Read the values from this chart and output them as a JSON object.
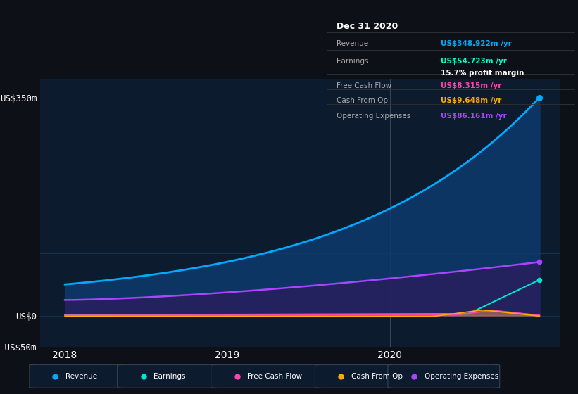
{
  "bg_color": "#0d1117",
  "plot_bg_color": "#0d1b2e",
  "grid_color": "#1e3050",
  "title_box_bg": "#0a0a0a",
  "title_box_border": "#333333",
  "info_box": {
    "date": "Dec 31 2020",
    "revenue_label": "Revenue",
    "revenue_value": "US$348.922m /yr",
    "revenue_color": "#00aaff",
    "earnings_label": "Earnings",
    "earnings_value": "US$54.723m /yr",
    "earnings_color": "#00ffcc",
    "margin_text": "15.7% profit margin",
    "fcf_label": "Free Cash Flow",
    "fcf_value": "US$8.315m /yr",
    "fcf_color": "#ff44aa",
    "cashfromop_label": "Cash From Op",
    "cashfromop_value": "US$9.648m /yr",
    "cashfromop_color": "#ffaa00",
    "opex_label": "Operating Expenses",
    "opex_value": "US$86.161m /yr",
    "opex_color": "#aa44ff"
  },
  "ylim": [
    -50,
    380
  ],
  "yticks": [
    -50,
    0,
    350
  ],
  "ytick_labels": [
    "-US$50m",
    "US$0",
    "US$350m"
  ],
  "xlabel_ticks": [
    2018.0,
    2019.0,
    2020.0
  ],
  "xlabel_labels": [
    "2018",
    "2019",
    "2020"
  ],
  "revenue_color": "#00aaff",
  "earnings_color": "#00e5cc",
  "fcf_color": "#ff44aa",
  "cashfromop_color": "#ffaa00",
  "opex_color": "#aa44ff",
  "legend_labels": [
    "Revenue",
    "Earnings",
    "Free Cash Flow",
    "Cash From Op",
    "Operating Expenses"
  ],
  "legend_colors": [
    "#00aaff",
    "#00e5cc",
    "#ff44aa",
    "#ffaa00",
    "#aa44ff"
  ]
}
